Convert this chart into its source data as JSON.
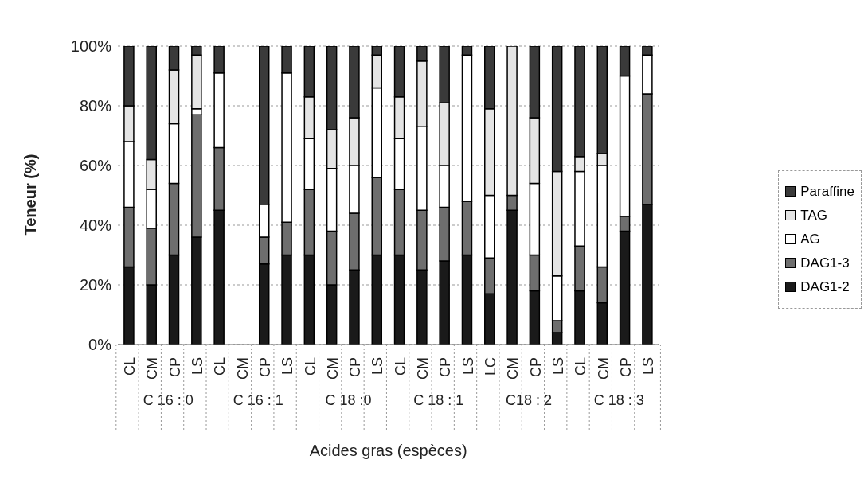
{
  "chart_data": {
    "type": "bar",
    "stacked": true,
    "xlabel": "Acides gras (espèces)",
    "ylabel": "Teneur (%)",
    "categories": [
      "CL",
      "CM",
      "CP",
      "LS",
      "CL",
      "CM",
      "CP",
      "LS",
      "CL",
      "CM",
      "CP",
      "LS",
      "CL",
      "CM",
      "CP",
      "LS",
      "LC",
      "CM",
      "CP",
      "LS",
      "CL",
      "CM",
      "CP",
      "LS"
    ],
    "annotations": [
      "C 16 : 0",
      "C 16 : 1",
      "C 18 :0",
      "C 18 : 1",
      "C18 : 2",
      "C 18 : 3"
    ],
    "series": [
      {
        "name": "DAG1-2",
        "color": "#1a1a1a",
        "values": [
          26,
          20,
          30,
          36,
          45,
          0,
          27,
          30,
          30,
          20,
          25,
          30,
          30,
          25,
          28,
          30,
          17,
          45,
          18,
          4,
          18,
          14,
          38,
          47
        ]
      },
      {
        "name": "DAG1-3",
        "color": "#6e6e6e",
        "values": [
          20,
          19,
          24,
          41,
          21,
          0,
          9,
          11,
          22,
          18,
          19,
          26,
          22,
          20,
          18,
          18,
          12,
          5,
          12,
          4,
          15,
          12,
          5,
          37
        ]
      },
      {
        "name": "AG",
        "color": "#ffffff",
        "values": [
          22,
          13,
          20,
          2,
          25,
          0,
          11,
          50,
          17,
          21,
          16,
          30,
          17,
          28,
          14,
          49,
          21,
          0,
          24,
          15,
          25,
          34,
          47,
          13
        ]
      },
      {
        "name": "TAG",
        "color": "#e4e4e4",
        "values": [
          12,
          10,
          18,
          18,
          0,
          0,
          0,
          0,
          14,
          13,
          16,
          11,
          14,
          22,
          21,
          0,
          29,
          50,
          22,
          35,
          5,
          4,
          0,
          0
        ]
      },
      {
        "name": "Paraffine",
        "color": "#3a3a3a",
        "values": [
          20,
          38,
          8,
          3,
          9,
          0,
          53,
          9,
          17,
          28,
          24,
          3,
          17,
          5,
          19,
          3,
          21,
          0,
          24,
          42,
          37,
          36,
          10,
          3
        ]
      }
    ],
    "ylim": [
      0,
      100
    ],
    "yticks": [
      {
        "value": 0,
        "label": "0%"
      },
      {
        "value": 20,
        "label": "20%"
      },
      {
        "value": 40,
        "label": "40%"
      },
      {
        "value": 60,
        "label": "60%"
      },
      {
        "value": 80,
        "label": "80%"
      },
      {
        "value": 100,
        "label": "100%"
      }
    ],
    "grid": "y",
    "legend": "right"
  }
}
